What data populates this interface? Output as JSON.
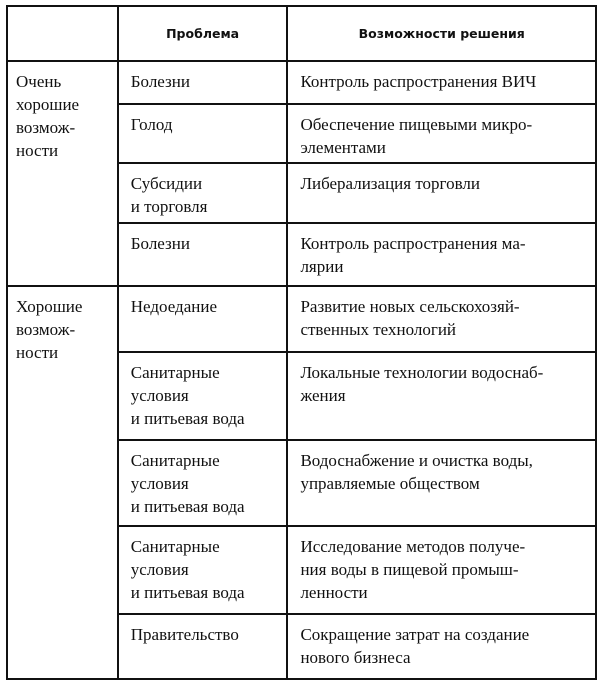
{
  "header": {
    "group": "",
    "problem": "Проблема",
    "solution": "Возможности решения"
  },
  "groups": [
    {
      "label": "Очень\nхорошие\nвозмож-\nности",
      "rows": [
        {
          "problem": "Болезни",
          "solution": "Контроль распространения ВИЧ"
        },
        {
          "problem": "Голод",
          "solution": "Обеспечение пищевыми микро-\nэлементами"
        },
        {
          "problem": "Субсидии\nи торговля",
          "solution": "Либерализация торговли"
        },
        {
          "problem": "Болезни",
          "solution": "Контроль распространения ма-\nлярии"
        }
      ]
    },
    {
      "label": "Хорошие\nвозмож-\nности",
      "rows": [
        {
          "problem": "Недоедание",
          "solution": "Развитие новых сельскохозяй-\nственных технологий"
        },
        {
          "problem": "Санитарные\nусловия\nи питьевая вода",
          "solution": "Локальные технологии водоснаб-\nжения"
        },
        {
          "problem": "Санитарные\nусловия\nи питьевая вода",
          "solution": "Водоснабжение и очистка воды,\nуправляемые обществом"
        },
        {
          "problem": "Санитарные\nусловия\nи питьевая вода",
          "solution": "Исследование методов получе-\nния воды в пищевой промыш-\nленности"
        },
        {
          "problem": "Правительство",
          "solution": "Сокращение затрат на создание\nнового бизнеса"
        }
      ]
    }
  ]
}
